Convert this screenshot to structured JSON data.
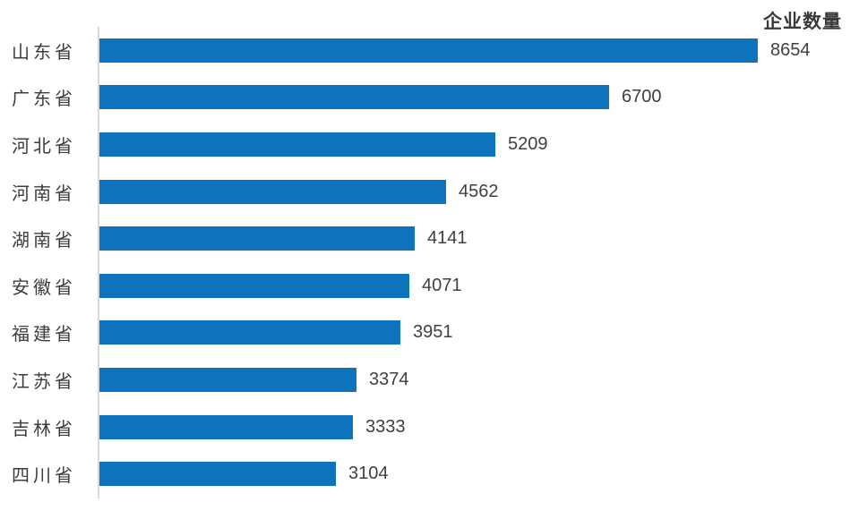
{
  "chart_data": {
    "type": "bar",
    "orientation": "horizontal",
    "title": "企业数量",
    "categories": [
      "山东省",
      "广东省",
      "河北省",
      "河南省",
      "湖南省",
      "安徽省",
      "福建省",
      "江苏省",
      "吉林省",
      "四川省"
    ],
    "values": [
      8654,
      6700,
      5209,
      4562,
      4141,
      4071,
      3951,
      3374,
      3333,
      3104
    ],
    "data_labels": [
      8654,
      6700,
      5209,
      4562,
      4141,
      4071,
      3951,
      3374,
      3333,
      3104
    ],
    "xlabel": "",
    "ylabel": "",
    "xlim": [
      0,
      8654
    ],
    "grid": false,
    "legend": false,
    "bar_color": "#0e72bc",
    "axis_line_color": "#d9d9d9",
    "category_label_color": "#3c3c3c",
    "value_label_color": "#404040",
    "title_color": "#3a3a3a"
  }
}
